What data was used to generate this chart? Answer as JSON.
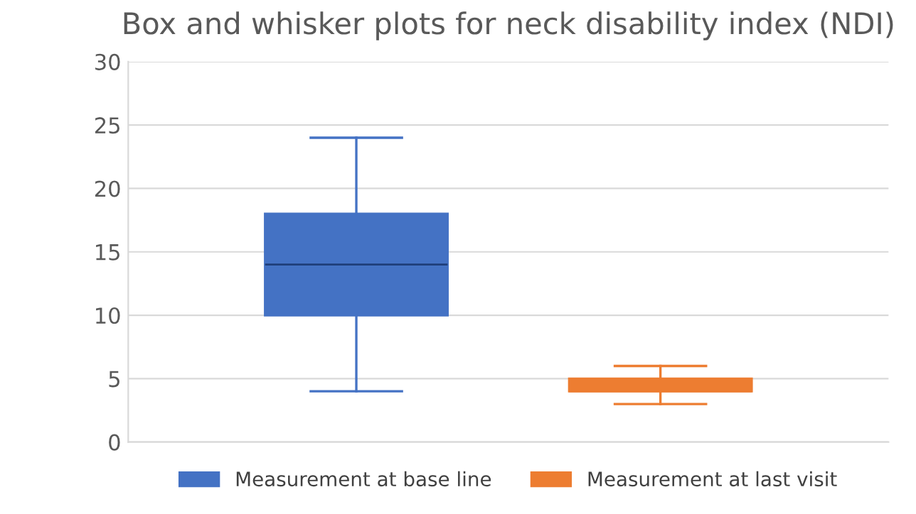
{
  "chart_data": {
    "type": "box",
    "title": "Box and whisker plots for neck disability index (NDI)",
    "categories": [
      null
    ],
    "series": [
      {
        "name": "Measurement at base line",
        "color": "#4472c4",
        "boxes": [
          {
            "low": 4,
            "q1": 10,
            "median": 14,
            "q3": 18,
            "high": 24
          }
        ]
      },
      {
        "name": "Measurement at last visit",
        "color": "#ed7d31",
        "boxes": [
          {
            "low": 3,
            "q1": 4,
            "median": 4,
            "q3": 5,
            "high": 6
          }
        ]
      }
    ],
    "ylim": [
      0,
      30
    ],
    "yticks": [
      0,
      5,
      10,
      15,
      20,
      25,
      30
    ],
    "grid": "y",
    "legend": "bottom"
  }
}
